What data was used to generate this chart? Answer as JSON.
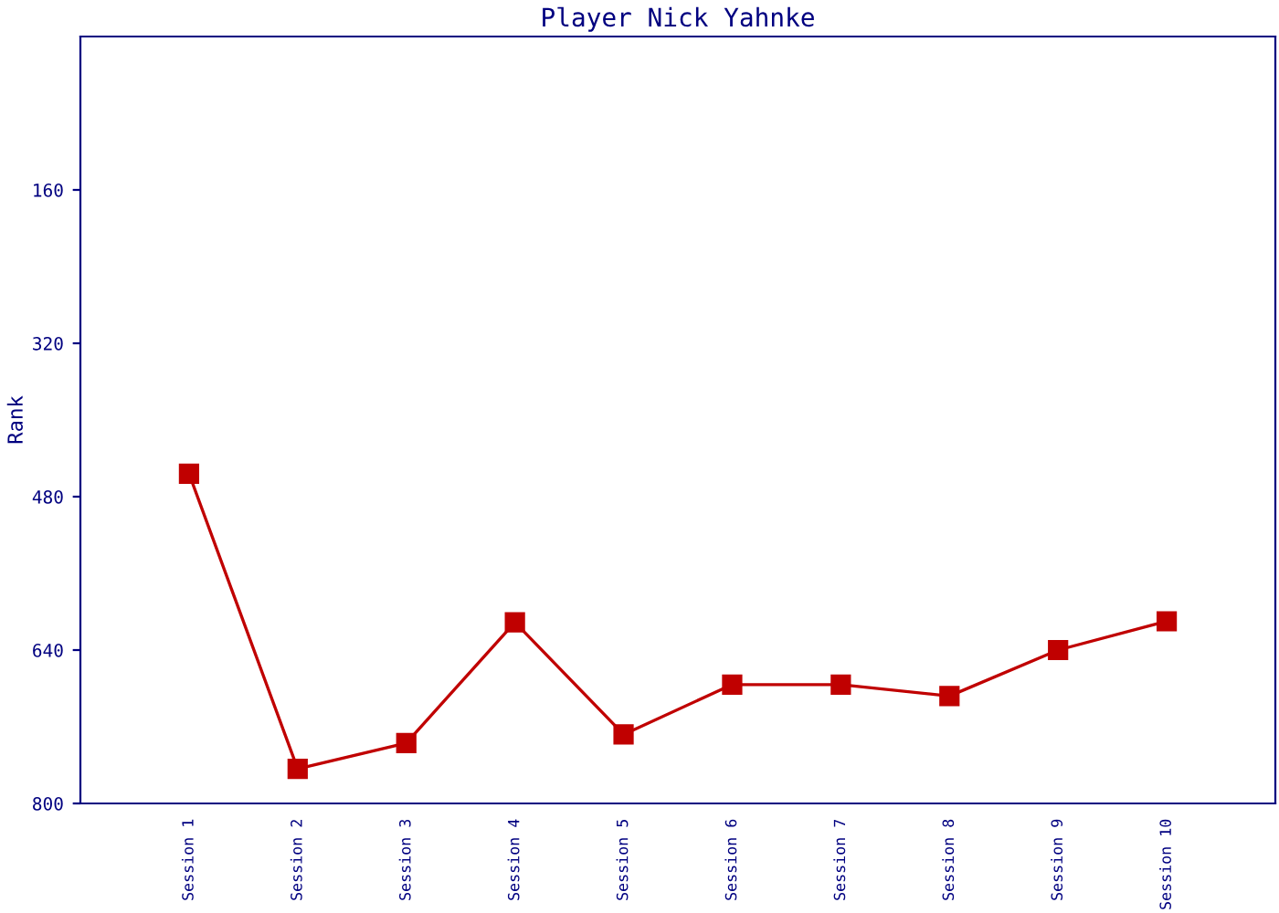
{
  "chart_data": {
    "type": "line",
    "title": "Player Nick Yahnke",
    "ylabel": "Rank",
    "categories": [
      "Session 1",
      "Session 2",
      "Session 3",
      "Session 4",
      "Session 5",
      "Session 6",
      "Session 7",
      "Session 8",
      "Session 9",
      "Session 10"
    ],
    "series": [
      {
        "color": "#c00000",
        "values": [
          456,
          764,
          737,
          611,
          728,
          676,
          676,
          688,
          640,
          610
        ]
      }
    ],
    "ylim": [
      800,
      0
    ],
    "yticks": [
      160,
      320,
      480,
      640,
      800
    ],
    "marker": "square",
    "line_style": "solid",
    "grid": false,
    "legend": false
  }
}
